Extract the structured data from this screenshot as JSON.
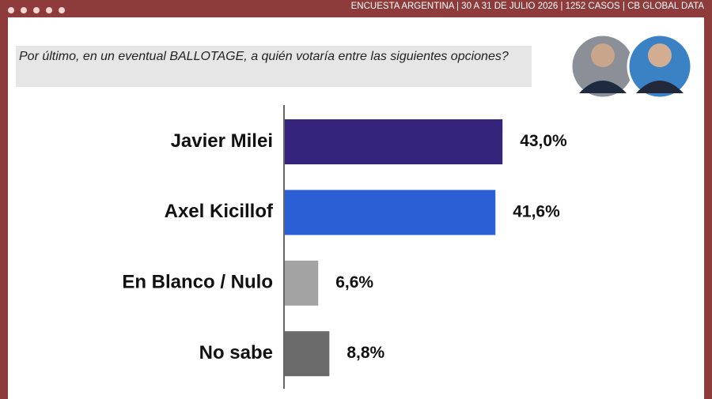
{
  "header": "ENCUESTA ARGENTINA | 30 A 31 DE JULIO 2026 | 1252 CASOS | CB GLOBAL DATA",
  "chart_data": {
    "type": "bar",
    "orientation": "horizontal",
    "title": "Por último, en un eventual BALLOTAGE, a quién votaría entre las siguientes opciones?",
    "categories": [
      "Javier Milei",
      "Axel Kicillof",
      "En Blanco / Nulo",
      "No sabe"
    ],
    "values": [
      43.0,
      41.6,
      6.6,
      8.8
    ],
    "value_labels": [
      "43,0%",
      "41,6%",
      "6,6%",
      "8,8%"
    ],
    "colors": [
      "#33237a",
      "#2a5fd6",
      "#a3a3a3",
      "#6b6b6b"
    ]
  }
}
